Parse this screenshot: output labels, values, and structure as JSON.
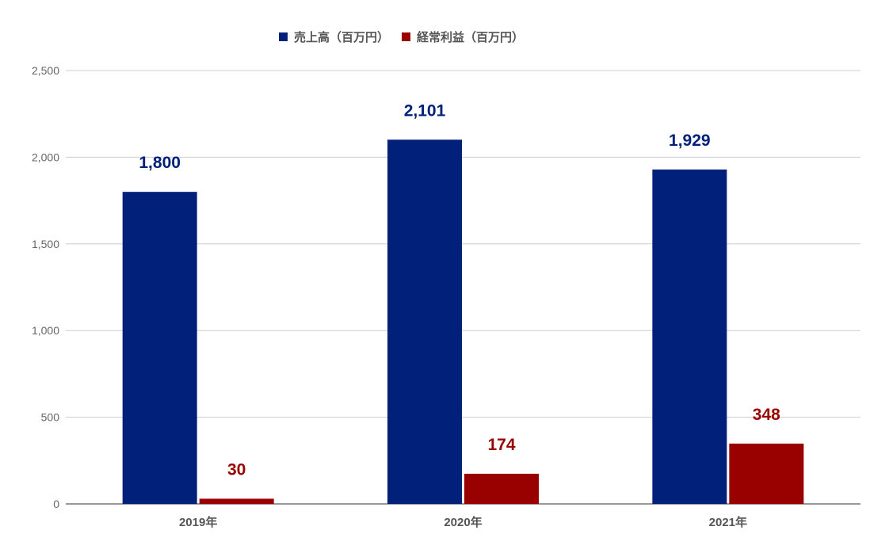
{
  "chart_data": {
    "type": "bar",
    "categories": [
      "2019年",
      "2020年",
      "2021年"
    ],
    "series": [
      {
        "name": "売上高（百万円）",
        "values": [
          1800,
          2101,
          1929
        ],
        "labels": [
          "1,800",
          "2,101",
          "1,929"
        ],
        "color": "#00207a"
      },
      {
        "name": "経常利益（百万円）",
        "values": [
          30,
          174,
          348
        ],
        "labels": [
          "30",
          "174",
          "348"
        ],
        "color": "#990000"
      }
    ],
    "yticks": [
      0,
      500,
      1000,
      1500,
      2000,
      2500
    ],
    "ytick_labels": [
      "0",
      "500",
      "1,000",
      "1,500",
      "2,000",
      "2,500"
    ],
    "ylim": [
      0,
      2500
    ],
    "grid": true,
    "legend_position": "top"
  }
}
